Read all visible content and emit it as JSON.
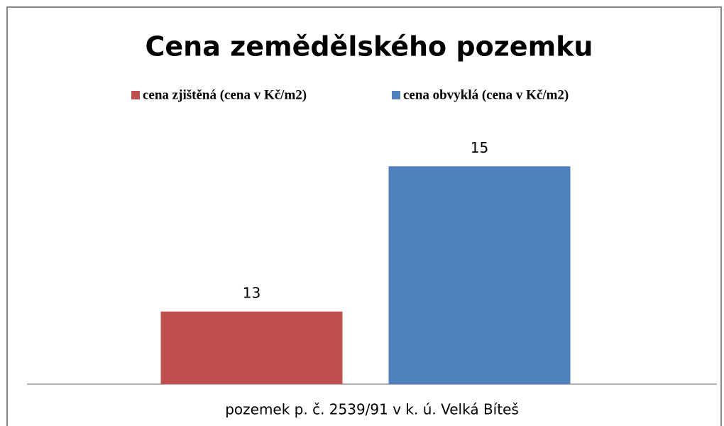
{
  "chart_data": {
    "type": "bar",
    "title": "Cena zemědělského pozemku",
    "categories": [
      "pozemek p. č. 2539/91 v k. ú. Velká Bíteš"
    ],
    "series": [
      {
        "name": "cena zjištěná  (cena v Kč/m2)",
        "color": "#c0504d",
        "values": [
          13
        ]
      },
      {
        "name": "cena obvyklá (cena v Kč/m2)",
        "color": "#4f81bd",
        "values": [
          15
        ]
      }
    ],
    "ylim": [
      12,
      16
    ],
    "legend": "top"
  }
}
